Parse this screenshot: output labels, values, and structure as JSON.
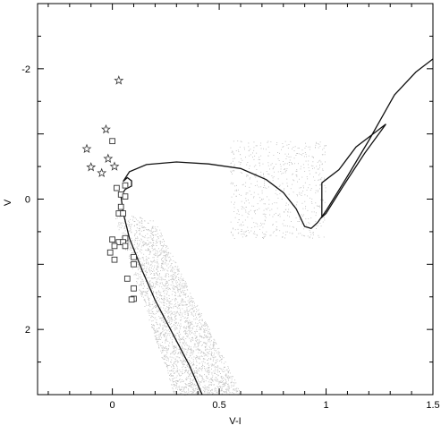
{
  "chart_data": {
    "type": "scatter",
    "title": "",
    "xlabel": "V-I",
    "ylabel": "V",
    "xlim": [
      -0.35,
      1.5
    ],
    "ylim": [
      3.0,
      -3.0
    ],
    "y_inverted": true,
    "grid": false,
    "x_ticks": [
      {
        "value": 0,
        "label": "0"
      },
      {
        "value": 0.5,
        "label": "0.5"
      },
      {
        "value": 1,
        "label": "1"
      },
      {
        "value": 1.5,
        "label": "1.5"
      }
    ],
    "y_ticks": [
      {
        "value": -2,
        "label": "-2"
      },
      {
        "value": 0,
        "label": "0"
      },
      {
        "value": 2,
        "label": "2"
      }
    ],
    "background_field": {
      "description_visible": "dense grey dots",
      "color": "#bdbdbd",
      "regions": [
        {
          "x": [
            0.03,
            0.55
          ],
          "y": [
            0.3,
            3.0
          ]
        },
        {
          "x": [
            0.55,
            1.02
          ],
          "y": [
            -0.9,
            0.6
          ]
        }
      ]
    },
    "series": [
      {
        "marker": "star",
        "points": [
          {
            "x": 0.03,
            "y": -1.82
          },
          {
            "x": -0.03,
            "y": -1.07
          },
          {
            "x": -0.12,
            "y": -0.77
          },
          {
            "x": -0.02,
            "y": -0.62
          },
          {
            "x": -0.1,
            "y": -0.49
          },
          {
            "x": 0.01,
            "y": -0.5
          },
          {
            "x": -0.05,
            "y": -0.4
          }
        ]
      },
      {
        "marker": "square",
        "points": [
          {
            "x": 0.0,
            "y": -0.89
          },
          {
            "x": 0.06,
            "y": -0.21
          },
          {
            "x": 0.02,
            "y": -0.17
          },
          {
            "x": 0.04,
            "y": -0.07
          },
          {
            "x": 0.06,
            "y": -0.04
          },
          {
            "x": 0.04,
            "y": 0.12
          },
          {
            "x": 0.03,
            "y": 0.22
          },
          {
            "x": 0.05,
            "y": 0.22
          },
          {
            "x": 0.06,
            "y": 0.6
          },
          {
            "x": 0.0,
            "y": 0.62
          },
          {
            "x": 0.03,
            "y": 0.66
          },
          {
            "x": 0.05,
            "y": 0.66
          },
          {
            "x": 0.01,
            "y": 0.72
          },
          {
            "x": 0.06,
            "y": 0.72
          },
          {
            "x": -0.01,
            "y": 0.82
          },
          {
            "x": 0.01,
            "y": 0.93
          },
          {
            "x": 0.1,
            "y": 0.89
          },
          {
            "x": 0.1,
            "y": 1.0
          },
          {
            "x": 0.07,
            "y": 1.22
          },
          {
            "x": 0.1,
            "y": 1.37
          },
          {
            "x": 0.1,
            "y": 1.53
          },
          {
            "x": 0.09,
            "y": 1.54
          }
        ]
      }
    ],
    "curves": [
      {
        "style": "solid",
        "points": [
          [
            0.42,
            3.0
          ],
          [
            0.36,
            2.55
          ],
          [
            0.28,
            2.05
          ],
          [
            0.2,
            1.55
          ],
          [
            0.14,
            1.1
          ],
          [
            0.08,
            0.6
          ],
          [
            0.05,
            0.2
          ],
          [
            0.04,
            -0.05
          ],
          [
            0.06,
            -0.15
          ],
          [
            0.09,
            -0.2
          ],
          [
            0.09,
            -0.28
          ],
          [
            0.07,
            -0.33
          ],
          [
            0.05,
            -0.27
          ],
          [
            0.08,
            -0.42
          ],
          [
            0.16,
            -0.53
          ],
          [
            0.3,
            -0.57
          ],
          [
            0.45,
            -0.54
          ],
          [
            0.6,
            -0.47
          ],
          [
            0.72,
            -0.3
          ],
          [
            0.8,
            -0.1
          ],
          [
            0.86,
            0.15
          ],
          [
            0.9,
            0.42
          ],
          [
            0.93,
            0.45
          ],
          [
            0.96,
            0.36
          ],
          [
            1.0,
            0.18
          ],
          [
            1.1,
            -0.35
          ],
          [
            1.2,
            -0.9
          ],
          [
            1.32,
            -1.6
          ],
          [
            1.42,
            -1.95
          ],
          [
            1.5,
            -2.15
          ]
        ]
      },
      {
        "style": "solid",
        "points": [
          [
            0.98,
            -0.25
          ],
          [
            0.98,
            0.28
          ],
          [
            1.0,
            0.22
          ],
          [
            1.08,
            -0.2
          ],
          [
            1.18,
            -0.7
          ],
          [
            1.28,
            -1.15
          ],
          [
            1.24,
            -1.05
          ],
          [
            1.14,
            -0.8
          ],
          [
            1.06,
            -0.45
          ],
          [
            1.0,
            -0.3
          ],
          [
            0.98,
            -0.25
          ]
        ]
      }
    ]
  }
}
